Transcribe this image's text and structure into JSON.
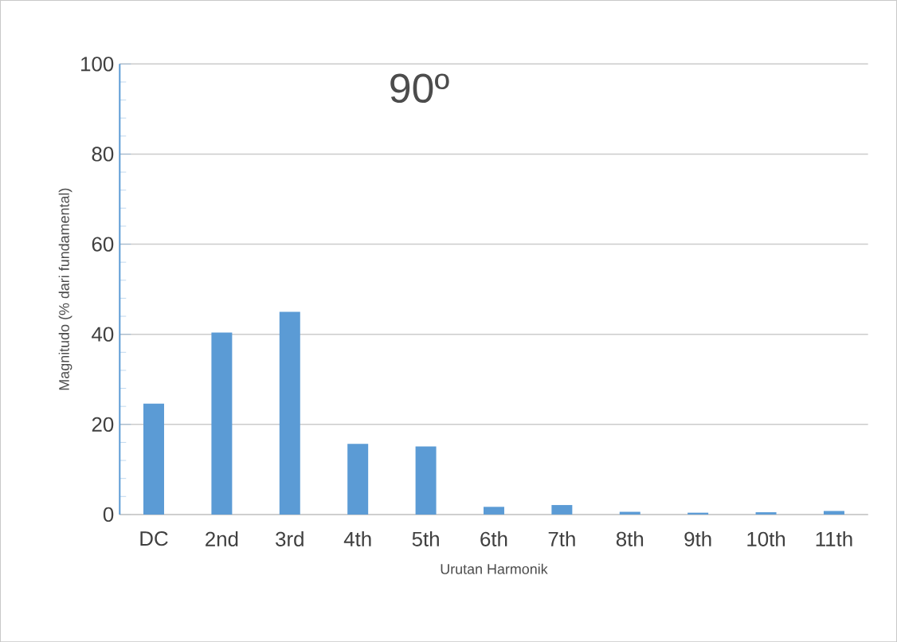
{
  "chart_data": {
    "type": "bar",
    "title": "90º",
    "xlabel": "Urutan Harmonik",
    "ylabel": "Magnitudo (% dari fundamental)",
    "categories": [
      "DC",
      "2nd",
      "3rd",
      "4th",
      "5th",
      "6th",
      "7th",
      "8th",
      "9th",
      "10th",
      "11th"
    ],
    "values": [
      24.6,
      40.4,
      45.0,
      15.7,
      15.1,
      1.7,
      2.1,
      0.6,
      0.4,
      0.5,
      0.8
    ],
    "color": "#5b9bd5",
    "ylim": [
      0,
      100
    ],
    "yticks": [
      0,
      20,
      40,
      60,
      80,
      100
    ],
    "grid": "y"
  }
}
